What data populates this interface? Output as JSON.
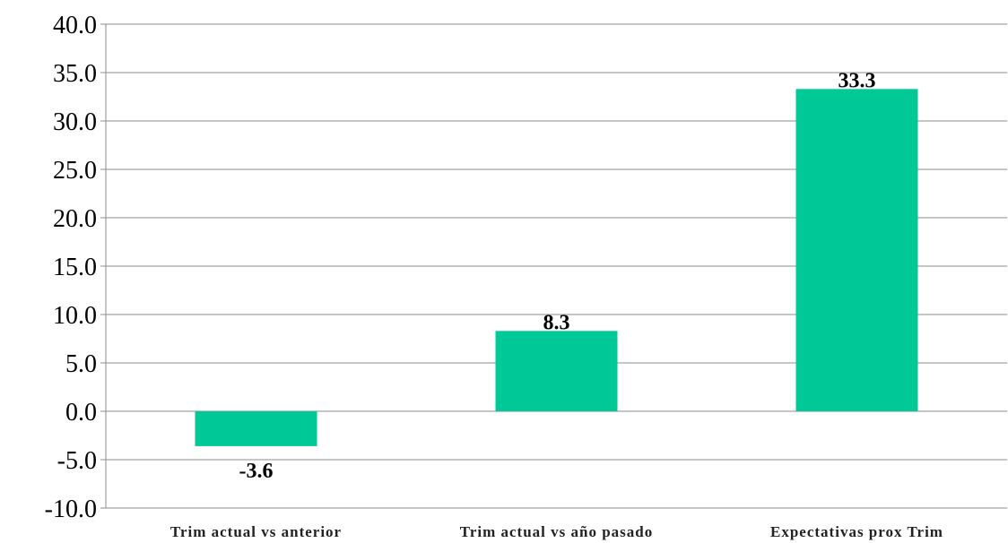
{
  "chart_data": {
    "type": "bar",
    "categories": [
      "Trim actual vs anterior",
      "Trim actual vs año pasado",
      "Expectativas prox Trim"
    ],
    "values": [
      -3.6,
      8.3,
      33.3
    ],
    "data_labels": [
      "-3.6",
      "8.3",
      "33.3"
    ],
    "title": "",
    "xlabel": "",
    "ylabel": "",
    "ylim": [
      -10,
      40
    ],
    "yticks": [
      40,
      35,
      30,
      25,
      20,
      15,
      10,
      5,
      0,
      -5,
      -10
    ],
    "ytick_labels": [
      "40.0",
      "35.0",
      "30.0",
      "25.0",
      "20.0",
      "15.0",
      "10.0",
      "5.0",
      "0.0",
      "-5.0",
      "-10.0"
    ],
    "grid": true,
    "legend": "none",
    "colors": {
      "bar": "#00C896",
      "grid": "#8C8C8C",
      "axis": "#8C8C8C",
      "text": "#000000"
    }
  }
}
